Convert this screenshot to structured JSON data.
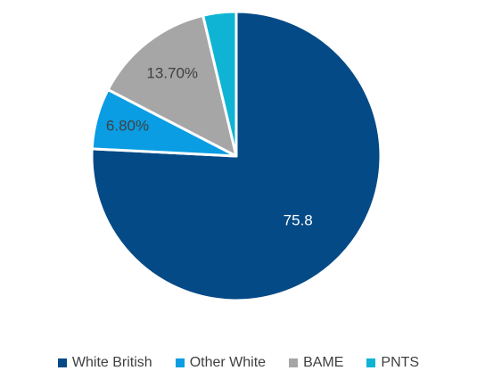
{
  "chart_data": {
    "type": "pie",
    "categories": [
      "White British",
      "Other White",
      "BAME",
      "PNTS"
    ],
    "values": [
      75.8,
      6.8,
      13.7,
      3.7
    ],
    "data_labels": [
      "75.8",
      "6.80%",
      "13.70%",
      ""
    ],
    "colors": [
      "#044a86",
      "#0a9de3",
      "#a6a6a6",
      "#0fb4d4"
    ],
    "label_colors": [
      "#ffffff",
      "#404040",
      "#404040",
      "#404040"
    ],
    "start_angle_deg": 0,
    "direction": "clockwise",
    "legend_position": "bottom",
    "title": ""
  }
}
